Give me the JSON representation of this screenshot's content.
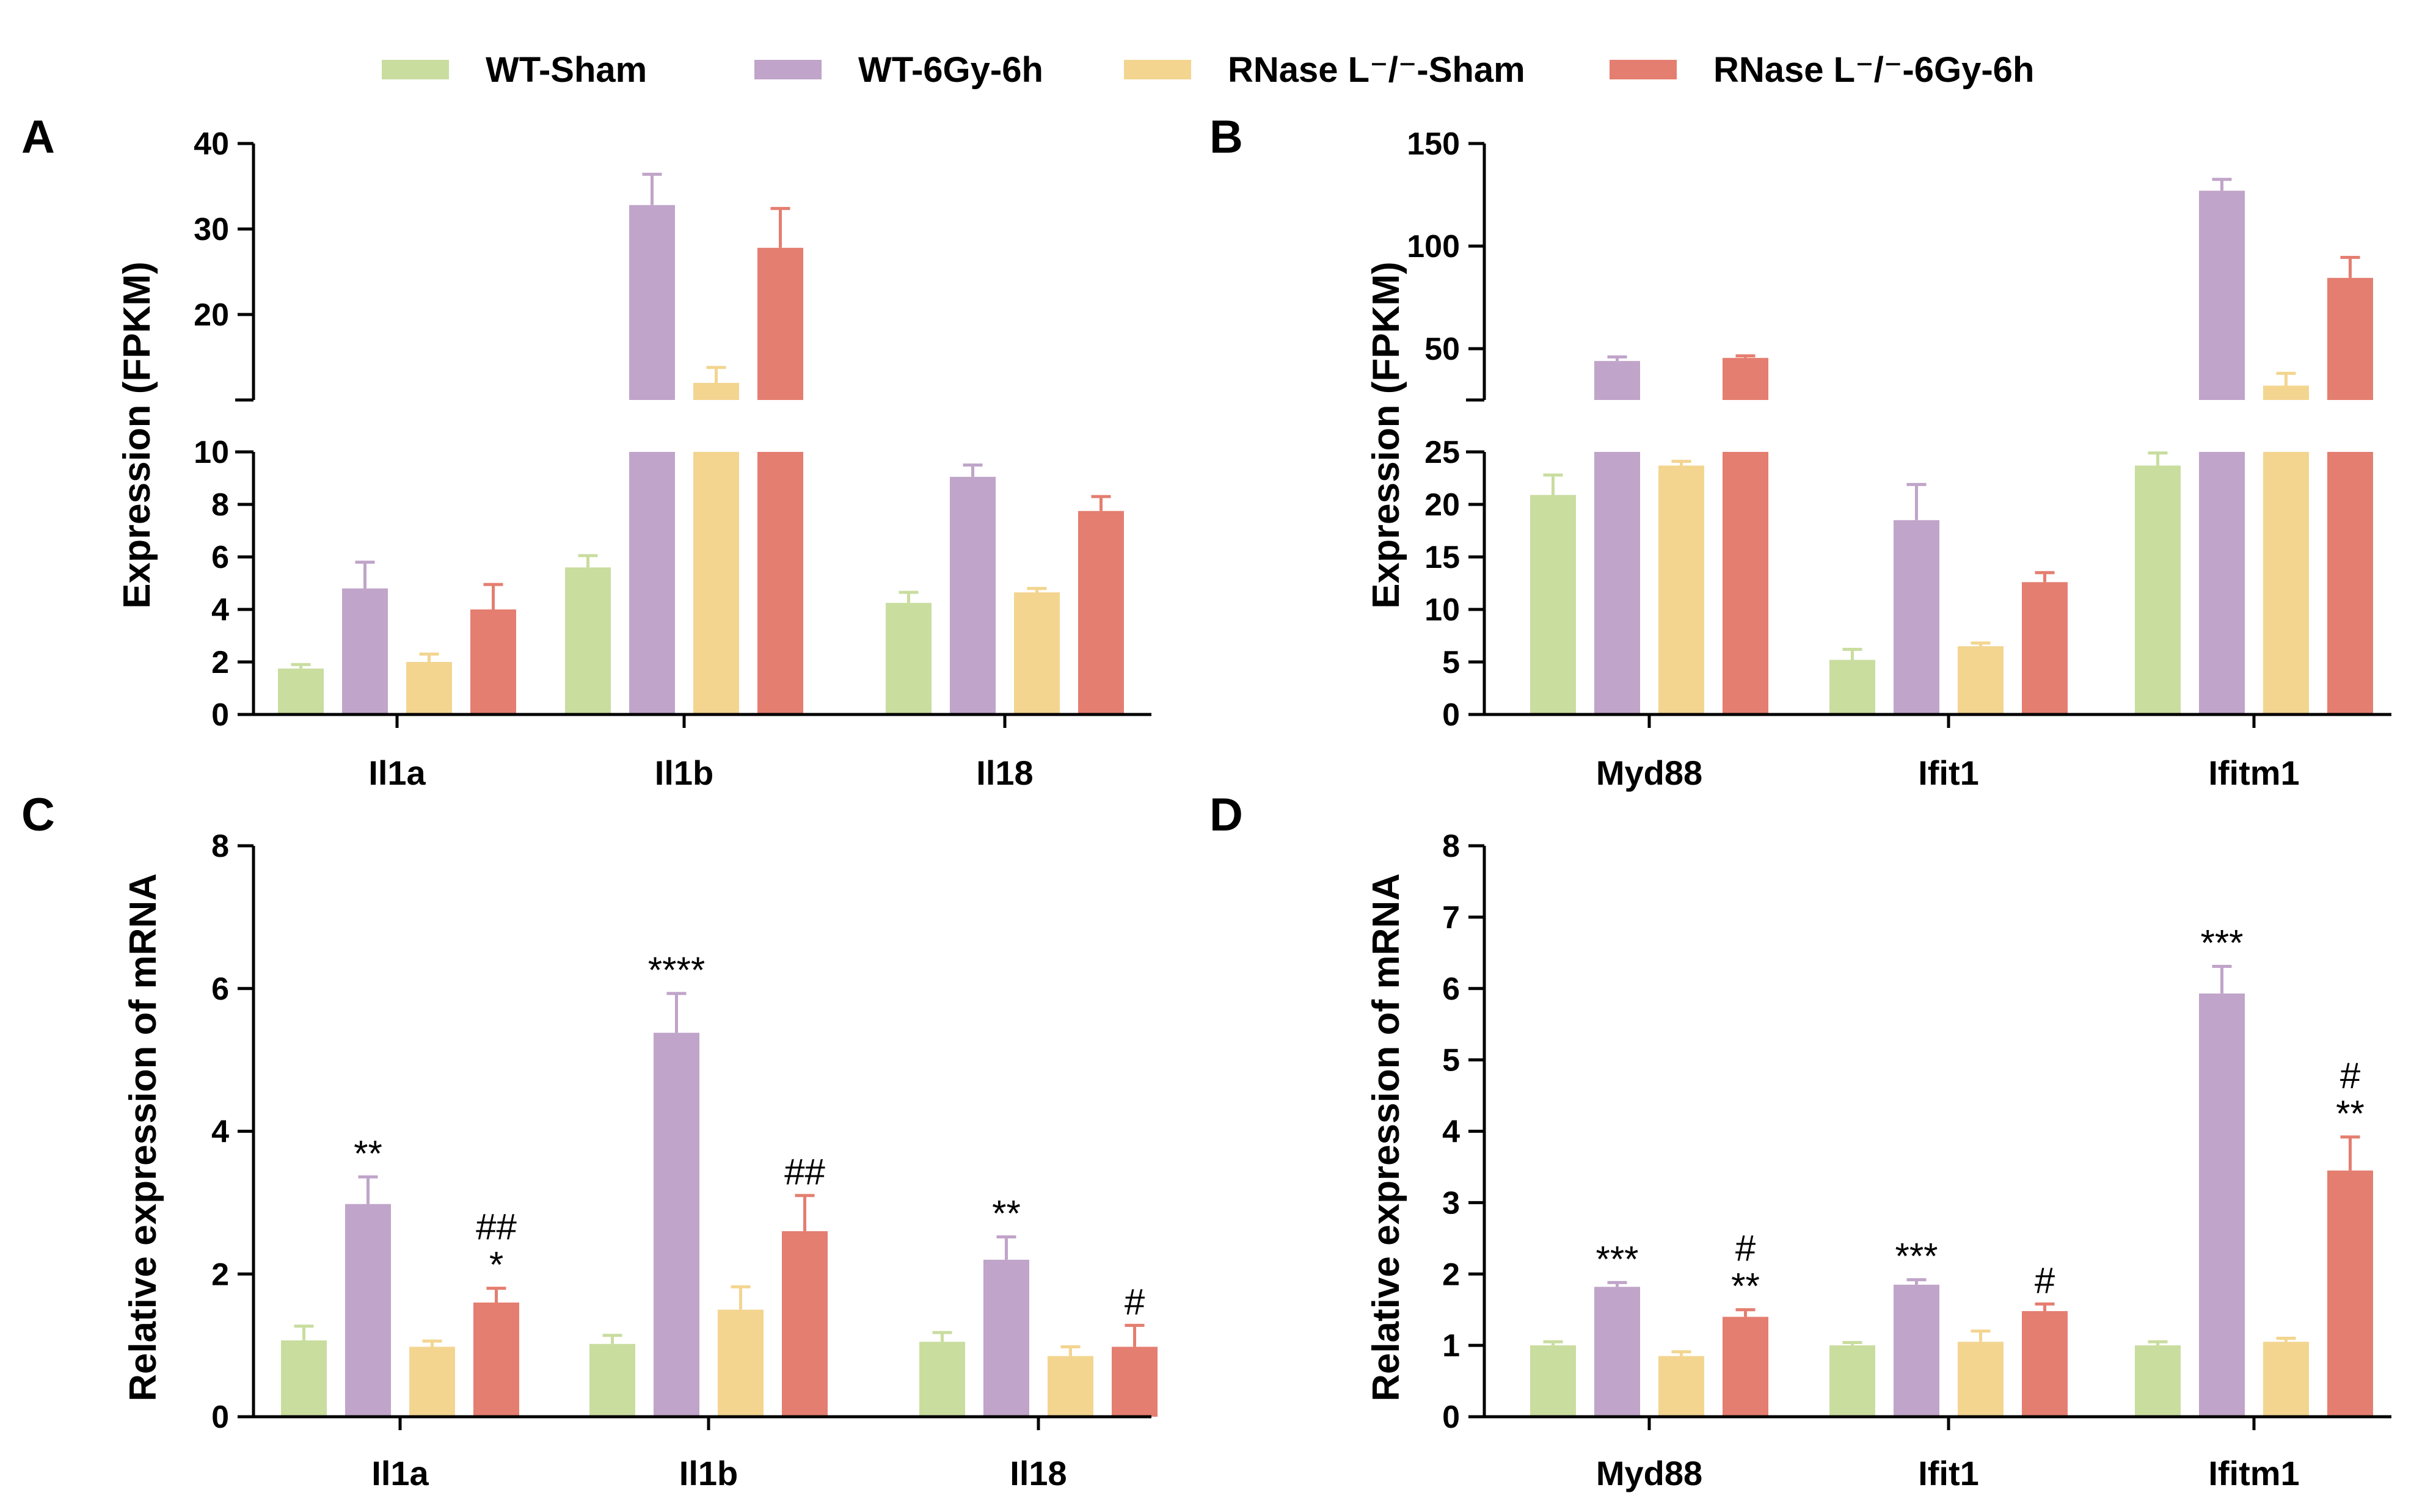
{
  "colors": {
    "WT-Sham": "#c9dd9f",
    "WT-6Gy-6h": "#c0a4c9",
    "RNase_KO-Sham": "#f3d590",
    "RNase_KO-6Gy-6h": "#e47e70"
  },
  "legend": {
    "items": [
      {
        "label": "WT-Sham",
        "color_key": "WT-Sham"
      },
      {
        "label": "WT-6Gy-6h",
        "color_key": "WT-6Gy-6h"
      },
      {
        "label": "RNase L⁻/⁻-Sham",
        "color_key": "RNase_KO-Sham"
      },
      {
        "label": "RNase L⁻/⁻-6Gy-6h",
        "color_key": "RNase_KO-6Gy-6h"
      }
    ]
  },
  "chart_data": [
    {
      "panel": "A",
      "type": "bar",
      "ylabel": "Expression (FPKM)",
      "categories": [
        "Il1a",
        "Il1b",
        "Il18"
      ],
      "broken_axis": {
        "lower": [
          0,
          10
        ],
        "upper": [
          10,
          40
        ]
      },
      "lower_ticks": [
        "0",
        "2",
        "4",
        "6",
        "8",
        "10"
      ],
      "upper_ticks": [
        "20",
        "30",
        "40"
      ],
      "series": [
        {
          "name": "WT-Sham",
          "values": [
            1.75,
            5.6,
            4.25
          ],
          "errors": [
            0.15,
            0.45,
            0.4
          ]
        },
        {
          "name": "WT-6Gy-6h",
          "values": [
            4.8,
            32.8,
            9.05
          ],
          "errors": [
            1.0,
            3.6,
            0.45
          ]
        },
        {
          "name": "RNase L-/- -Sham",
          "values": [
            2.0,
            12.0,
            4.65
          ],
          "errors": [
            0.3,
            1.8,
            0.15
          ]
        },
        {
          "name": "RNase L-/- -6Gy-6h",
          "values": [
            4.0,
            27.8,
            7.75
          ],
          "errors": [
            0.95,
            4.6,
            0.55
          ]
        }
      ],
      "annotations": []
    },
    {
      "panel": "B",
      "type": "bar",
      "ylabel": "Expression (FPKM)",
      "categories": [
        "Myd88",
        "Ifit1",
        "Ifitm1"
      ],
      "broken_axis": {
        "lower": [
          0,
          25
        ],
        "upper": [
          25,
          150
        ]
      },
      "lower_ticks": [
        "0",
        "5",
        "10",
        "15",
        "20",
        "25"
      ],
      "upper_ticks": [
        "50",
        "100",
        "150"
      ],
      "series": [
        {
          "name": "WT-Sham",
          "values": [
            20.9,
            5.2,
            23.7
          ],
          "errors": [
            1.9,
            1.0,
            1.2
          ]
        },
        {
          "name": "WT-6Gy-6h",
          "values": [
            44.0,
            18.5,
            127.0
          ],
          "errors": [
            2.0,
            3.4,
            5.5
          ]
        },
        {
          "name": "RNase L-/- -Sham",
          "values": [
            23.7,
            6.5,
            32.0
          ],
          "errors": [
            0.4,
            0.3,
            6.0
          ]
        },
        {
          "name": "RNase L-/- -6Gy-6h",
          "values": [
            45.5,
            12.6,
            84.5
          ],
          "errors": [
            1.0,
            0.9,
            10.0
          ]
        }
      ],
      "annotations": []
    },
    {
      "panel": "C",
      "type": "bar",
      "ylabel": "Relative expression of mRNA",
      "categories": [
        "Il1a",
        "Il1b",
        "Il18"
      ],
      "ylim": [
        0,
        8
      ],
      "ticks": [
        "0",
        "2",
        "4",
        "6",
        "8"
      ],
      "series": [
        {
          "name": "WT-Sham",
          "values": [
            1.07,
            1.02,
            1.05
          ],
          "errors": [
            0.2,
            0.12,
            0.13
          ]
        },
        {
          "name": "WT-6Gy-6h",
          "values": [
            2.98,
            5.38,
            2.2
          ],
          "errors": [
            0.38,
            0.55,
            0.32
          ]
        },
        {
          "name": "RNase L-/- -Sham",
          "values": [
            0.98,
            1.5,
            0.85
          ],
          "errors": [
            0.08,
            0.32,
            0.13
          ]
        },
        {
          "name": "RNase L-/- -6Gy-6h",
          "values": [
            1.6,
            2.6,
            0.98
          ],
          "errors": [
            0.2,
            0.5,
            0.3
          ]
        }
      ],
      "annotations": [
        {
          "category": "Il1a",
          "series": "WT-6Gy-6h",
          "lines": [
            "**"
          ]
        },
        {
          "category": "Il1a",
          "series": "RNase L-/- -6Gy-6h",
          "lines": [
            "##",
            "*"
          ]
        },
        {
          "category": "Il1b",
          "series": "WT-6Gy-6h",
          "lines": [
            "****"
          ]
        },
        {
          "category": "Il1b",
          "series": "RNase L-/- -6Gy-6h",
          "lines": [
            "##"
          ]
        },
        {
          "category": "Il18",
          "series": "WT-6Gy-6h",
          "lines": [
            "**"
          ]
        },
        {
          "category": "Il18",
          "series": "RNase L-/- -6Gy-6h",
          "lines": [
            "#"
          ]
        }
      ]
    },
    {
      "panel": "D",
      "type": "bar",
      "ylabel": "Relative expression of mRNA",
      "categories": [
        "Myd88",
        "Ifit1",
        "Ifitm1"
      ],
      "ylim": [
        0,
        8
      ],
      "ticks": [
        "0",
        "1",
        "2",
        "3",
        "4",
        "5",
        "6",
        "7",
        "8"
      ],
      "series": [
        {
          "name": "WT-Sham",
          "values": [
            1.0,
            1.0,
            1.0
          ],
          "errors": [
            0.05,
            0.04,
            0.05
          ]
        },
        {
          "name": "WT-6Gy-6h",
          "values": [
            1.82,
            1.85,
            5.93
          ],
          "errors": [
            0.06,
            0.07,
            0.38
          ]
        },
        {
          "name": "RNase L-/- -Sham",
          "values": [
            0.85,
            1.05,
            1.05
          ],
          "errors": [
            0.06,
            0.15,
            0.05
          ]
        },
        {
          "name": "RNase L-/- -6Gy-6h",
          "values": [
            1.4,
            1.48,
            3.45
          ],
          "errors": [
            0.1,
            0.1,
            0.47
          ]
        }
      ],
      "annotations": [
        {
          "category": "Myd88",
          "series": "WT-6Gy-6h",
          "lines": [
            "***"
          ]
        },
        {
          "category": "Myd88",
          "series": "RNase L-/- -6Gy-6h",
          "lines": [
            "#",
            "**"
          ]
        },
        {
          "category": "Ifit1",
          "series": "WT-6Gy-6h",
          "lines": [
            "***"
          ]
        },
        {
          "category": "Ifit1",
          "series": "RNase L-/- -6Gy-6h",
          "lines": [
            "#"
          ]
        },
        {
          "category": "Ifitm1",
          "series": "WT-6Gy-6h",
          "lines": [
            "***"
          ]
        },
        {
          "category": "Ifitm1",
          "series": "RNase L-/- -6Gy-6h",
          "lines": [
            "#",
            "**"
          ]
        }
      ]
    }
  ]
}
